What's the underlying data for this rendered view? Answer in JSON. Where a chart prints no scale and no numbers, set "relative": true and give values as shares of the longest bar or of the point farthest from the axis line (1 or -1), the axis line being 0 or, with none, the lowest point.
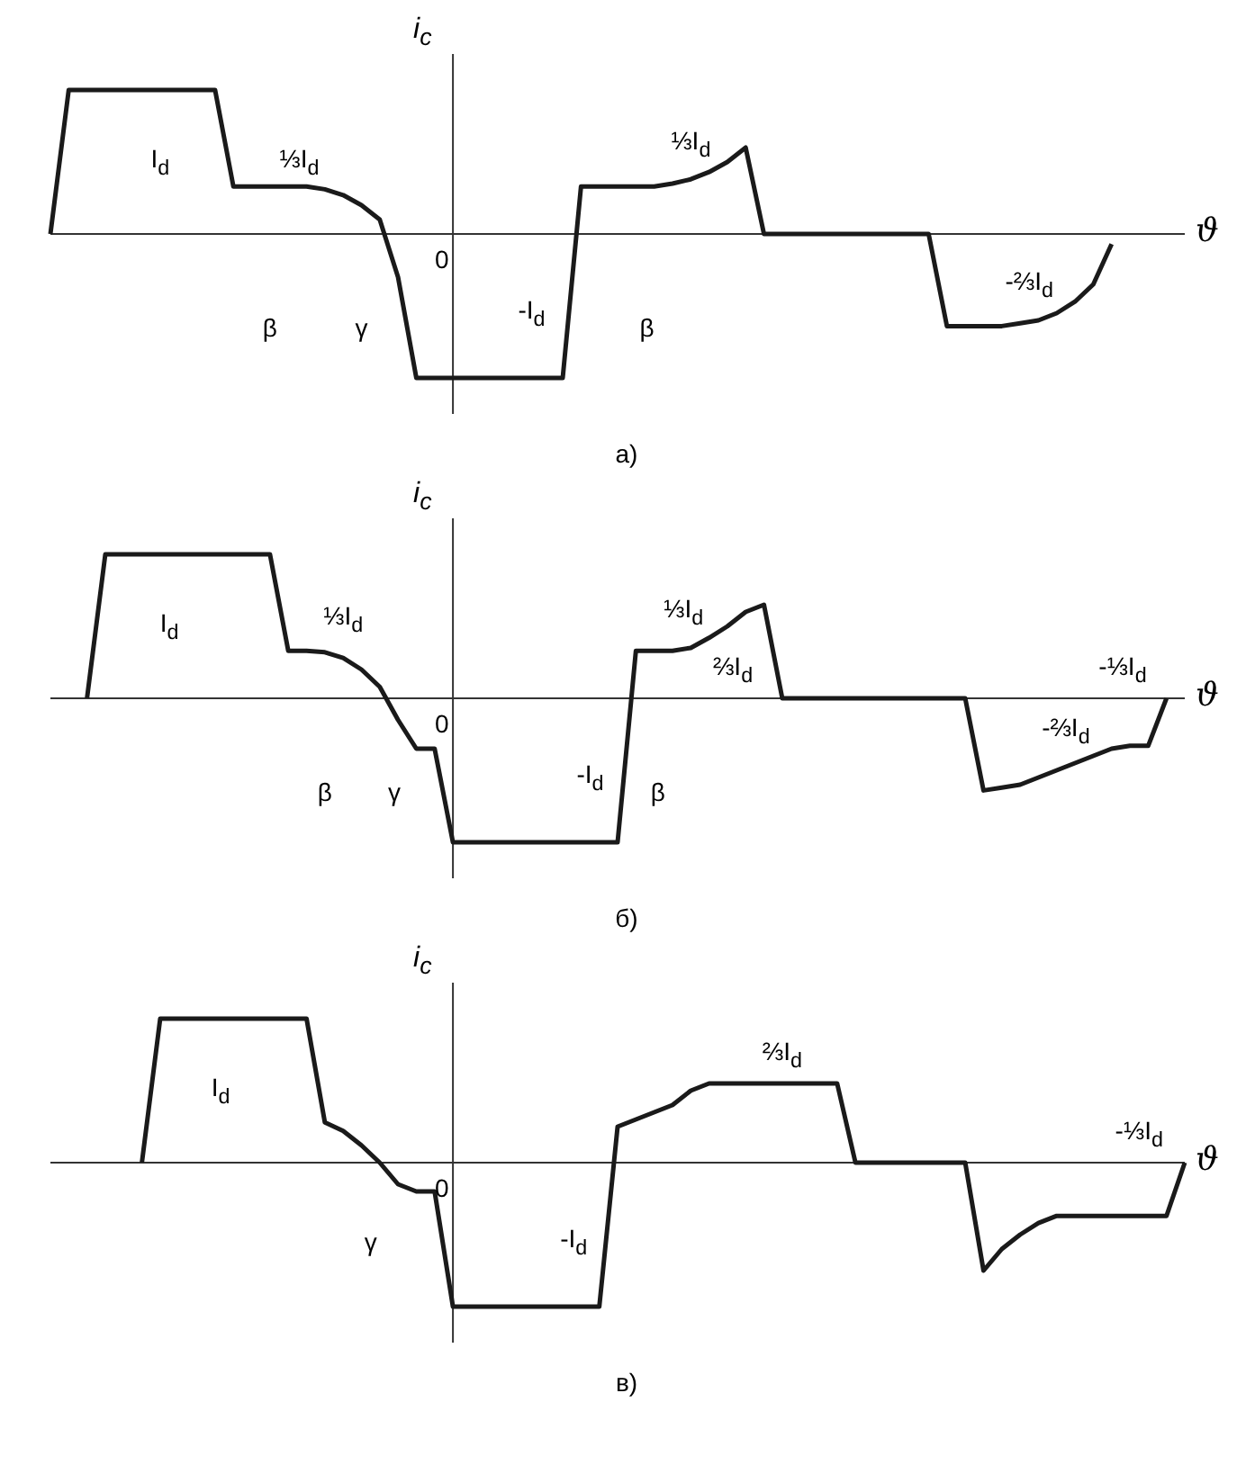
{
  "chart_data": [
    {
      "type": "line",
      "relative": true,
      "title": "а)",
      "ylabel": "i$_{c}$",
      "xlabel": "ϑ",
      "marker": "none",
      "categories": [
        null,
        null,
        null,
        null,
        null,
        null,
        null,
        null,
        null,
        null,
        null,
        null,
        null,
        null,
        null,
        null,
        null,
        null,
        null,
        null,
        null,
        null,
        null,
        null,
        null,
        null,
        null,
        null,
        null,
        null,
        null,
        null,
        null,
        null,
        null,
        null,
        null,
        null,
        null,
        null,
        null,
        null,
        null,
        null,
        null,
        null,
        null,
        null,
        null,
        null,
        null,
        null,
        null,
        null,
        null,
        null,
        null,
        null,
        null,
        null,
        null,
        null,
        null
      ],
      "series": [
        {
          "color": "#1a1a1a",
          "values": [
            0,
            1,
            1,
            1,
            1,
            1,
            1,
            1,
            1,
            1,
            0.33,
            0.33,
            0.33,
            0.33,
            0.33,
            0.31,
            0.27,
            0.2,
            0.1,
            -0.3,
            -1,
            -1,
            -1,
            -1,
            -1,
            -1,
            -1,
            -1,
            -1,
            0.33,
            0.33,
            0.33,
            0.33,
            0.33,
            0.35,
            0.38,
            0.43,
            0.5,
            0.6,
            0,
            0,
            0,
            0,
            0,
            0,
            0,
            0,
            0,
            0,
            -0.64,
            -0.64,
            -0.64,
            -0.64,
            -0.62,
            -0.6,
            -0.55,
            -0.47,
            -0.35,
            -0.07,
            null,
            null,
            null,
            null
          ]
        }
      ],
      "annotations": [
        "I$_{d}$",
        "⅓I$_{d}$",
        "β",
        "γ",
        "0",
        "-I$_{d}$",
        "⅓I$_{d}$",
        "β",
        "-⅔I$_{d}$"
      ]
    },
    {
      "type": "line",
      "relative": true,
      "title": "б)",
      "ylabel": "i$_{c}$",
      "xlabel": "ϑ",
      "marker": "none",
      "categories": [
        null,
        null,
        null,
        null,
        null,
        null,
        null,
        null,
        null,
        null,
        null,
        null,
        null,
        null,
        null,
        null,
        null,
        null,
        null,
        null,
        null,
        null,
        null,
        null,
        null,
        null,
        null,
        null,
        null,
        null,
        null,
        null,
        null,
        null,
        null,
        null,
        null,
        null,
        null,
        null,
        null,
        null,
        null,
        null,
        null,
        null,
        null,
        null,
        null,
        null,
        null,
        null,
        null,
        null,
        null,
        null,
        null,
        null,
        null,
        null,
        null,
        null,
        null
      ],
      "series": [
        {
          "color": "#1a1a1a",
          "values": [
            null,
            null,
            0,
            1,
            1,
            1,
            1,
            1,
            1,
            1,
            1,
            1,
            1,
            0.33,
            0.33,
            0.32,
            0.28,
            0.2,
            0.08,
            -0.15,
            -0.35,
            -0.35,
            -1,
            -1,
            -1,
            -1,
            -1,
            -1,
            -1,
            -1,
            -1,
            -1,
            0.33,
            0.33,
            0.33,
            0.35,
            0.42,
            0.5,
            0.6,
            0.65,
            0,
            0,
            0,
            0,
            0,
            0,
            0,
            0,
            0,
            0,
            0,
            -0.64,
            -0.62,
            -0.6,
            -0.55,
            -0.5,
            -0.45,
            -0.4,
            -0.35,
            -0.33,
            -0.33,
            0,
            null
          ]
        }
      ],
      "annotations": [
        "I$_{d}$",
        "⅓I$_{d}$",
        "β",
        "γ",
        "0",
        "-I$_{d}$",
        "⅓I$_{d}$",
        "⅔I$_{d}$",
        "β",
        "-⅔I$_{d}$",
        "-⅓I$_{d}$"
      ]
    },
    {
      "type": "line",
      "relative": true,
      "title": "в)",
      "ylabel": "i$_{c}$",
      "xlabel": "ϑ",
      "marker": "none",
      "categories": [
        null,
        null,
        null,
        null,
        null,
        null,
        null,
        null,
        null,
        null,
        null,
        null,
        null,
        null,
        null,
        null,
        null,
        null,
        null,
        null,
        null,
        null,
        null,
        null,
        null,
        null,
        null,
        null,
        null,
        null,
        null,
        null,
        null,
        null,
        null,
        null,
        null,
        null,
        null,
        null,
        null,
        null,
        null,
        null,
        null,
        null,
        null,
        null,
        null,
        null,
        null,
        null,
        null,
        null,
        null,
        null,
        null,
        null,
        null,
        null,
        null,
        null,
        null
      ],
      "series": [
        {
          "color": "#1a1a1a",
          "values": [
            null,
            null,
            null,
            null,
            null,
            0,
            1,
            1,
            1,
            1,
            1,
            1,
            1,
            1,
            1,
            0.28,
            0.22,
            0.12,
            0,
            -0.15,
            -0.2,
            -0.2,
            -1,
            -1,
            -1,
            -1,
            -1,
            -1,
            -1,
            -1,
            -1,
            0.25,
            0.3,
            0.35,
            0.4,
            0.5,
            0.55,
            0.55,
            0.55,
            0.55,
            0.55,
            0.55,
            0.55,
            0.55,
            0,
            0,
            0,
            0,
            0,
            0,
            0,
            -0.75,
            -0.6,
            -0.5,
            -0.42,
            -0.37,
            -0.37,
            -0.37,
            -0.37,
            -0.37,
            -0.37,
            -0.37,
            0
          ]
        }
      ],
      "annotations": [
        "I$_{d}$",
        "γ",
        "0",
        "-I$_{d}$",
        "⅔I$_{d}$",
        "-⅓I$_{d}$"
      ]
    }
  ]
}
